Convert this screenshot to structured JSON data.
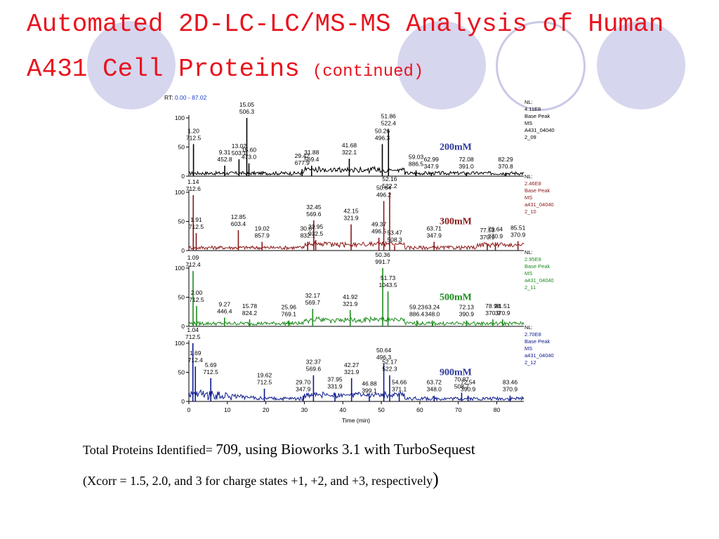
{
  "title": {
    "line1": "Automated 2D-LC-LC/MS-MS Analysis of Human",
    "line2": "A431 Cell Proteins",
    "continued": "(continued)"
  },
  "colors": {
    "title": "#e8141e",
    "circle_fill": "#d6d6ee",
    "circle_ring": "#c9c9e6"
  },
  "chart_data": {
    "type": "line",
    "rt_label": "RT:",
    "rt_range": "0.00 - 87.02",
    "xlabel": "Time (min)",
    "xlim": [
      0,
      87.02
    ],
    "xticks": [
      "0",
      "10",
      "20",
      "30",
      "40",
      "50",
      "60",
      "70",
      "80"
    ],
    "ylim": [
      0,
      100
    ],
    "yticks": [
      "0",
      "50",
      "100"
    ],
    "grid": false,
    "panels": [
      {
        "name": "200mM",
        "color": "#000000",
        "label_color": "#2e3a9a",
        "nl_label": "NL:",
        "nl_value": "4.11E8",
        "info": [
          "Base Peak",
          "MS",
          "A431_04040",
          "2_09"
        ],
        "peaks": [
          {
            "rt": "1.20",
            "mz": "712.5",
            "x": 1.2,
            "y": 55
          },
          {
            "rt": "9.31",
            "mz": "452.8",
            "x": 9.31,
            "y": 18
          },
          {
            "rt": "13.02",
            "mz": "503.1",
            "x": 13.02,
            "y": 29
          },
          {
            "rt": "15.05",
            "mz": "506.3",
            "x": 15.05,
            "y": 100
          },
          {
            "rt": "15.60",
            "mz": "473.0",
            "x": 15.6,
            "y": 22
          },
          {
            "rt": "29.42",
            "mz": "677.9",
            "x": 29.42,
            "y": 12
          },
          {
            "rt": "31.88",
            "mz": "569.4",
            "x": 31.88,
            "y": 18
          },
          {
            "rt": "41.68",
            "mz": "322.1",
            "x": 41.68,
            "y": 30
          },
          {
            "rt": "50.26",
            "mz": "496.3",
            "x": 50.26,
            "y": 55
          },
          {
            "rt": "51.86",
            "mz": "522.4",
            "x": 51.86,
            "y": 80
          },
          {
            "rt": "59.03",
            "mz": "886.5",
            "x": 59.03,
            "y": 10
          },
          {
            "rt": "62.99",
            "mz": "347.9",
            "x": 62.99,
            "y": 6
          },
          {
            "rt": "72.08",
            "mz": "391.0",
            "x": 72.08,
            "y": 6
          },
          {
            "rt": "82.29",
            "mz": "370.8",
            "x": 82.29,
            "y": 6
          }
        ]
      },
      {
        "name": "300mM",
        "color": "#8b1a1a",
        "label_color": "#8b1a1a",
        "nl_label": "NL:",
        "nl_value": "2.46E8",
        "info": [
          "Base Peak",
          "MS",
          "a431_04040",
          "2_10"
        ],
        "peaks": [
          {
            "rt": "1.14",
            "mz": "712.6",
            "x": 1.14,
            "y": 95
          },
          {
            "rt": "1.91",
            "mz": "712.5",
            "x": 1.91,
            "y": 30
          },
          {
            "rt": "12.85",
            "mz": "603.4",
            "x": 12.85,
            "y": 35
          },
          {
            "rt": "19.02",
            "mz": "857.9",
            "x": 19.02,
            "y": 15
          },
          {
            "rt": "30.87",
            "mz": "832.1",
            "x": 30.87,
            "y": 15
          },
          {
            "rt": "32.45",
            "mz": "569.6",
            "x": 32.45,
            "y": 52
          },
          {
            "rt": "32.95",
            "mz": "932.5",
            "x": 32.95,
            "y": 18
          },
          {
            "rt": "42.15",
            "mz": "321.9",
            "x": 42.15,
            "y": 45
          },
          {
            "rt": "49.37",
            "mz": "496.5",
            "x": 49.37,
            "y": 22
          },
          {
            "rt": "50.64",
            "mz": "496.2",
            "x": 50.64,
            "y": 85
          },
          {
            "rt": "52.16",
            "mz": "522.2",
            "x": 52.16,
            "y": 100
          },
          {
            "rt": "53.47",
            "mz": "508.3",
            "x": 53.47,
            "y": 8
          },
          {
            "rt": "63.71",
            "mz": "347.9",
            "x": 63.71,
            "y": 15
          },
          {
            "rt": "77.53",
            "mz": "370.9",
            "x": 77.53,
            "y": 12
          },
          {
            "rt": "79.64",
            "mz": "370.9",
            "x": 79.64,
            "y": 14
          },
          {
            "rt": "85.51",
            "mz": "370.9",
            "x": 85.51,
            "y": 16
          }
        ]
      },
      {
        "name": "500mM",
        "color": "#1e8c1e",
        "label_color": "#1e8c1e",
        "nl_label": "NL:",
        "nl_value": "2.95E8",
        "info": [
          "Base Peak",
          "MS",
          "a431_04040",
          "2_11"
        ],
        "peaks": [
          {
            "rt": "1.09",
            "mz": "712.4",
            "x": 1.09,
            "y": 95
          },
          {
            "rt": "2.00",
            "mz": "712.5",
            "x": 2.0,
            "y": 35
          },
          {
            "rt": "9.27",
            "mz": "446.4",
            "x": 9.27,
            "y": 15
          },
          {
            "rt": "15.78",
            "mz": "824.2",
            "x": 15.78,
            "y": 12
          },
          {
            "rt": "25.96",
            "mz": "769.1",
            "x": 25.96,
            "y": 10
          },
          {
            "rt": "32.17",
            "mz": "569.7",
            "x": 32.17,
            "y": 30
          },
          {
            "rt": "41.92",
            "mz": "321.9",
            "x": 41.92,
            "y": 28
          },
          {
            "rt": "50.36",
            "mz": "991.7",
            "x": 50.36,
            "y": 100
          },
          {
            "rt": "51.73",
            "mz": "1043.5",
            "x": 51.73,
            "y": 60
          },
          {
            "rt": "59.23",
            "mz": "886.4",
            "x": 59.23,
            "y": 10
          },
          {
            "rt": "63.24",
            "mz": "348.0",
            "x": 63.24,
            "y": 10
          },
          {
            "rt": "72.13",
            "mz": "390.9",
            "x": 72.13,
            "y": 10
          },
          {
            "rt": "78.98",
            "mz": "370.9",
            "x": 78.98,
            "y": 12
          },
          {
            "rt": "81.51",
            "mz": "370.9",
            "x": 81.51,
            "y": 12
          }
        ]
      },
      {
        "name": "900mM",
        "color": "#0c1a8c",
        "label_color": "#2e3a9a",
        "nl_label": "NL:",
        "nl_value": "2.70E8",
        "info": [
          "Base Peak",
          "MS",
          "a431_04040",
          "2_12"
        ],
        "peaks": [
          {
            "rt": "1.04",
            "mz": "712.5",
            "x": 1.04,
            "y": 100
          },
          {
            "rt": "1.69",
            "mz": "712.4",
            "x": 1.69,
            "y": 60
          },
          {
            "rt": "5.69",
            "mz": "712.5",
            "x": 5.69,
            "y": 40
          },
          {
            "rt": "19.62",
            "mz": "712.5",
            "x": 19.62,
            "y": 22
          },
          {
            "rt": "29.70",
            "mz": "347.9",
            "x": 29.7,
            "y": 10
          },
          {
            "rt": "32.37",
            "mz": "569.6",
            "x": 32.37,
            "y": 45
          },
          {
            "rt": "37.95",
            "mz": "331.9",
            "x": 37.95,
            "y": 15
          },
          {
            "rt": "42.27",
            "mz": "321.9",
            "x": 42.27,
            "y": 40
          },
          {
            "rt": "46.88",
            "mz": "399.1",
            "x": 46.88,
            "y": 8
          },
          {
            "rt": "50.64",
            "mz": "496.3",
            "x": 50.64,
            "y": 65
          },
          {
            "rt": "52.17",
            "mz": "522.3",
            "x": 52.17,
            "y": 45
          },
          {
            "rt": "54.66",
            "mz": "371.1",
            "x": 54.66,
            "y": 10
          },
          {
            "rt": "63.72",
            "mz": "348.0",
            "x": 63.72,
            "y": 10
          },
          {
            "rt": "70.87",
            "mz": "508.7",
            "x": 70.87,
            "y": 15
          },
          {
            "rt": "72.54",
            "mz": "390.9",
            "x": 72.54,
            "y": 10
          },
          {
            "rt": "83.46",
            "mz": "370.9",
            "x": 83.46,
            "y": 10
          }
        ]
      }
    ]
  },
  "caption": {
    "line1_a": "Total Proteins Identified= ",
    "line1_b": "709, using Bioworks 3.1 with TurboSequest",
    "line2_a": "(Xcorr = 1.5, 2.0, and 3 for charge states +1, +2, and +3, respectively",
    "line2_b": ")"
  }
}
